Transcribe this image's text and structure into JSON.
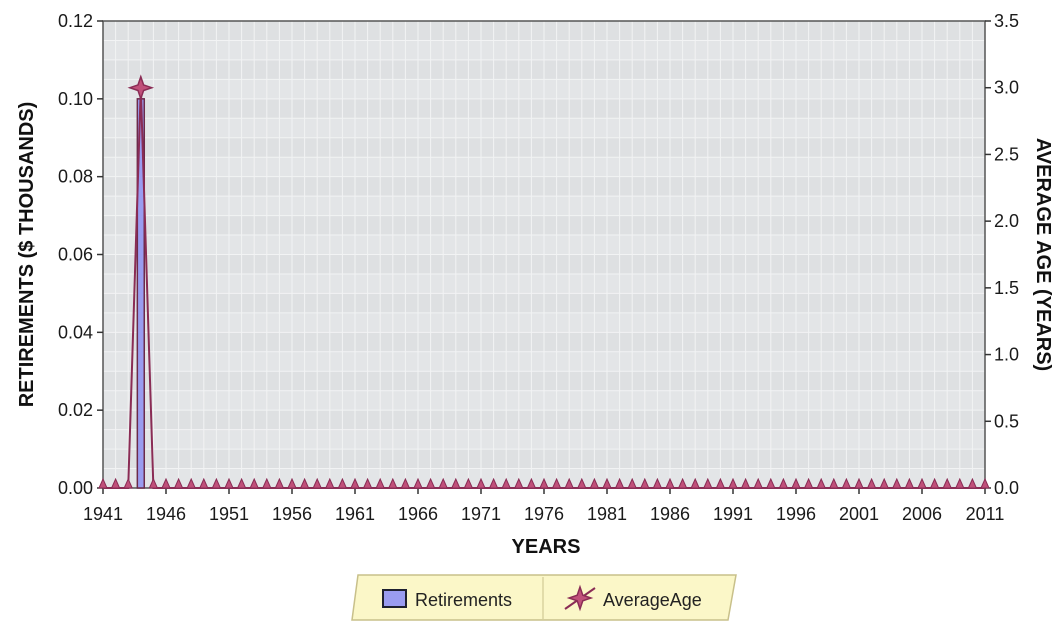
{
  "chart_data": {
    "type": "bar",
    "xlabel": "YEARS",
    "ylabel": "RETIREMENTS ($ THOUSANDS)",
    "y2label": "AVERAGE AGE (YEARS)",
    "x_start": 1941,
    "x_end": 2011,
    "x_tick_labels": [
      "1941",
      "1946",
      "1951",
      "1956",
      "1961",
      "1966",
      "1971",
      "1976",
      "1981",
      "1986",
      "1991",
      "1996",
      "2001",
      "2006",
      "2011"
    ],
    "ylim": [
      0,
      0.12
    ],
    "y_ticks": [
      "0.00",
      "0.02",
      "0.04",
      "0.06",
      "0.08",
      "0.10",
      "0.12"
    ],
    "y2lim": [
      0,
      3.5
    ],
    "y2_ticks": [
      "0.0",
      "0.5",
      "1.0",
      "1.5",
      "2.0",
      "2.5",
      "3.0",
      "3.5"
    ],
    "grid": true,
    "legend_position": "bottom-center",
    "series": [
      {
        "name": "Retirements",
        "type": "bar",
        "axis": "left",
        "color": "#9a9cf0",
        "edge_color": "#6b2a4a",
        "points": [
          {
            "x": 1944,
            "y": 0.1
          }
        ],
        "default_value": 0
      },
      {
        "name": "AverageAge",
        "type": "line",
        "axis": "right",
        "color": "#8a2c55",
        "marker": "four-point-star",
        "points": [
          {
            "x": 1944,
            "y": 3.0
          }
        ],
        "default_value": 0
      }
    ]
  },
  "colors": {
    "plot_background": "#e3e5e7",
    "grid": "#f2f3f4",
    "legend_background": "#fbf7c8"
  }
}
